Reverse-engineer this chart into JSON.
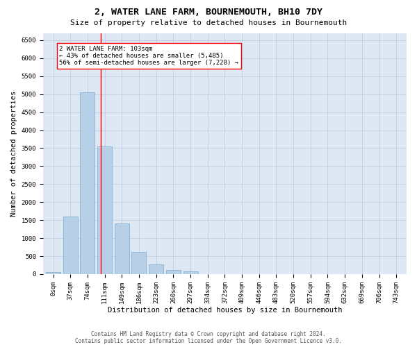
{
  "title": "2, WATER LANE FARM, BOURNEMOUTH, BH10 7DY",
  "subtitle": "Size of property relative to detached houses in Bournemouth",
  "xlabel": "Distribution of detached houses by size in Bournemouth",
  "ylabel": "Number of detached properties",
  "footer_line1": "Contains HM Land Registry data © Crown copyright and database right 2024.",
  "footer_line2": "Contains public sector information licensed under the Open Government Licence v3.0.",
  "bar_labels": [
    "0sqm",
    "37sqm",
    "74sqm",
    "111sqm",
    "149sqm",
    "186sqm",
    "223sqm",
    "260sqm",
    "297sqm",
    "334sqm",
    "372sqm",
    "409sqm",
    "446sqm",
    "483sqm",
    "520sqm",
    "557sqm",
    "594sqm",
    "632sqm",
    "669sqm",
    "706sqm",
    "743sqm"
  ],
  "bar_values": [
    50,
    1600,
    5050,
    3550,
    1400,
    620,
    270,
    120,
    70,
    0,
    0,
    0,
    0,
    0,
    0,
    0,
    0,
    0,
    0,
    0,
    0
  ],
  "bar_color": "#b8cfe8",
  "bar_edge_color": "#7aaad0",
  "property_line_x": 2.784,
  "annotation_line1": "2 WATER LANE FARM: 103sqm",
  "annotation_line2": "← 43% of detached houses are smaller (5,485)",
  "annotation_line3": "56% of semi-detached houses are larger (7,228) →",
  "ylim": [
    0,
    6700
  ],
  "yticks": [
    0,
    500,
    1000,
    1500,
    2000,
    2500,
    3000,
    3500,
    4000,
    4500,
    5000,
    5500,
    6000,
    6500
  ],
  "bg_axes": "#dde8f4",
  "grid_color": "#c0d0e0",
  "title_fontsize": 9.5,
  "subtitle_fontsize": 8,
  "axis_label_fontsize": 7.5,
  "tick_fontsize": 6.5,
  "annotation_fontsize": 6.5,
  "footer_fontsize": 5.5
}
